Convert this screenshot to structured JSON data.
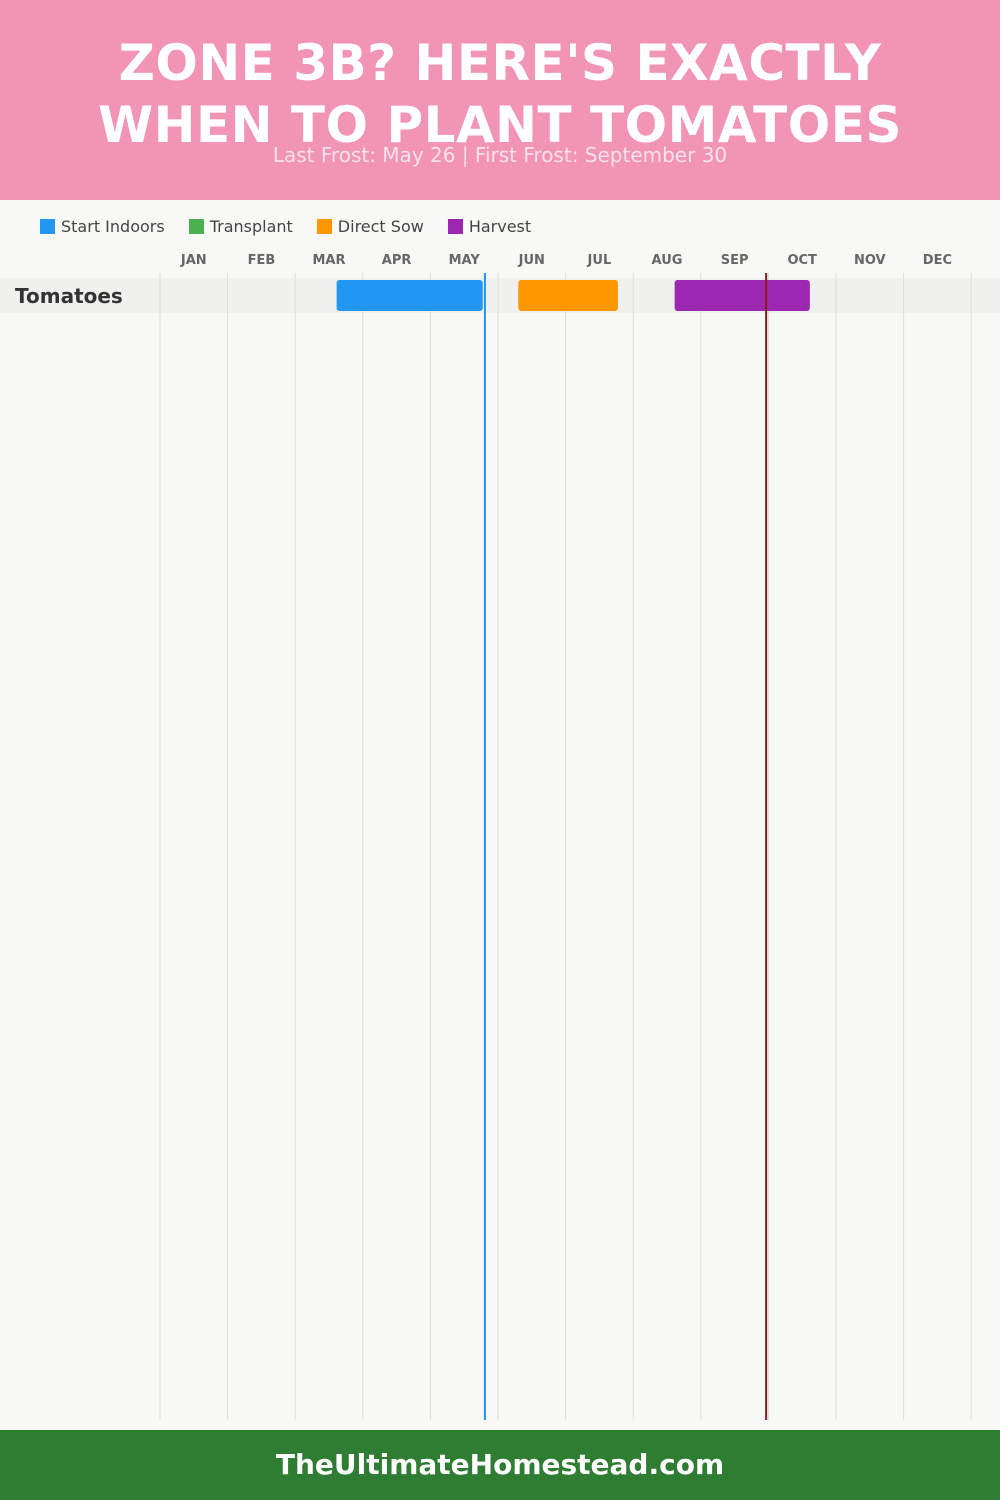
{
  "header": {
    "title_lines": [
      "ZONE 3B? HERE'S EXACTLY",
      "WHEN TO PLANT TOMATOES"
    ],
    "subtitle": "Last Frost: May 26 | First Frost: September 30"
  },
  "legend": [
    {
      "label": "Start Indoors",
      "color": "#2196f3"
    },
    {
      "label": "Transplant",
      "color": "#4caf50"
    },
    {
      "label": "Direct Sow",
      "color": "#ff9800"
    },
    {
      "label": "Harvest",
      "color": "#9c27b0"
    }
  ],
  "chart_data": {
    "type": "gantt",
    "months": [
      "JAN",
      "FEB",
      "MAR",
      "APR",
      "MAY",
      "JUN",
      "JUL",
      "AUG",
      "SEP",
      "OCT",
      "NOV",
      "DEC"
    ],
    "crops": [
      {
        "name": "Tomatoes",
        "tasks": [
          {
            "activity": "Start Indoors",
            "start": "Mar 20",
            "end": "May 25",
            "color": "#2196f3"
          },
          {
            "activity": "Direct Sow",
            "start": "Jun 10",
            "end": "Jul 25",
            "color": "#ff9800"
          },
          {
            "activity": "Harvest",
            "start": "Aug 20",
            "end": "Oct 20",
            "color": "#9c27b0"
          }
        ]
      }
    ],
    "frost_lines": [
      {
        "event": "Last Frost",
        "date": "May 26",
        "color": "#2196f3"
      },
      {
        "event": "First Frost",
        "date": "Sep 30",
        "color": "#8b1a1a"
      }
    ],
    "grid": true
  },
  "footer": {
    "site": "TheUltimateHomestead.com"
  }
}
